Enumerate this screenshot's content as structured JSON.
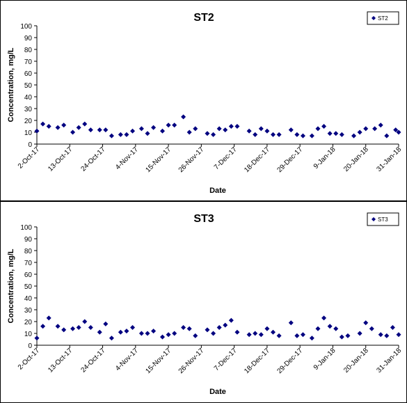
{
  "chart_data": [
    {
      "type": "scatter",
      "title": "ST2",
      "xlabel": "Date",
      "ylabel": "Concentration, mg/L",
      "ylim": [
        0,
        100
      ],
      "yticks": [
        "0",
        "10",
        "20",
        "30",
        "40",
        "50",
        "60",
        "70",
        "80",
        "90",
        "100"
      ],
      "xlim": [
        "2017-10-02",
        "2018-01-31"
      ],
      "xticks": [
        {
          "date": "2017-10-02",
          "label": "2-Oct-17"
        },
        {
          "date": "2017-10-13",
          "label": "13-Oct-17"
        },
        {
          "date": "2017-10-24",
          "label": "24-Oct-17"
        },
        {
          "date": "2017-11-04",
          "label": "4-Nov-17"
        },
        {
          "date": "2017-11-15",
          "label": "15-Nov-17"
        },
        {
          "date": "2017-11-26",
          "label": "26-Nov-17"
        },
        {
          "date": "2017-12-07",
          "label": "7-Dec-17"
        },
        {
          "date": "2017-12-18",
          "label": "18-Dec-17"
        },
        {
          "date": "2017-12-29",
          "label": "29-Dec-17"
        },
        {
          "date": "2018-01-09",
          "label": "9-Jan-18"
        },
        {
          "date": "2018-01-20",
          "label": "20-Jan-18"
        },
        {
          "date": "2018-01-31",
          "label": "31-Jan-18"
        }
      ],
      "grid": false,
      "legend_position": "top-right",
      "series": [
        {
          "name": "ST2",
          "color": "#000080",
          "x": [
            "2017-10-02",
            "2017-10-04",
            "2017-10-06",
            "2017-10-09",
            "2017-10-11",
            "2017-10-14",
            "2017-10-16",
            "2017-10-18",
            "2017-10-20",
            "2017-10-23",
            "2017-10-25",
            "2017-10-27",
            "2017-10-30",
            "2017-11-01",
            "2017-11-03",
            "2017-11-06",
            "2017-11-08",
            "2017-11-10",
            "2017-11-13",
            "2017-11-15",
            "2017-11-17",
            "2017-11-20",
            "2017-11-22",
            "2017-11-24",
            "2017-11-28",
            "2017-11-30",
            "2017-12-02",
            "2017-12-04",
            "2017-12-06",
            "2017-12-08",
            "2017-12-12",
            "2017-12-14",
            "2017-12-16",
            "2017-12-18",
            "2017-12-20",
            "2017-12-22",
            "2017-12-26",
            "2017-12-28",
            "2017-12-30",
            "2018-01-02",
            "2018-01-04",
            "2018-01-06",
            "2018-01-08",
            "2018-01-10",
            "2018-01-12",
            "2018-01-16",
            "2018-01-18",
            "2018-01-20",
            "2018-01-23",
            "2018-01-25",
            "2018-01-27",
            "2018-01-30",
            "2018-01-31"
          ],
          "values": [
            11,
            17,
            15,
            14,
            16,
            10,
            14,
            17,
            12,
            12,
            12,
            7,
            8,
            8,
            11,
            13,
            9,
            14,
            11,
            16,
            16,
            23,
            10,
            13,
            9,
            8,
            13,
            12,
            15,
            15,
            11,
            8,
            13,
            11,
            8,
            8,
            12,
            8,
            7,
            7,
            13,
            15,
            9,
            9,
            8,
            7,
            10,
            13,
            13,
            16,
            7,
            12,
            10
          ]
        }
      ]
    },
    {
      "type": "scatter",
      "title": "ST3",
      "xlabel": "Date",
      "ylabel": "Concentration, mg/L",
      "ylim": [
        0,
        100
      ],
      "yticks": [
        "0",
        "10",
        "20",
        "30",
        "40",
        "50",
        "60",
        "70",
        "80",
        "90",
        "100"
      ],
      "xlim": [
        "2017-10-02",
        "2018-01-31"
      ],
      "xticks": [
        {
          "date": "2017-10-02",
          "label": "2-Oct-17"
        },
        {
          "date": "2017-10-13",
          "label": "13-Oct-17"
        },
        {
          "date": "2017-10-24",
          "label": "24-Oct-17"
        },
        {
          "date": "2017-11-04",
          "label": "4-Nov-17"
        },
        {
          "date": "2017-11-15",
          "label": "15-Nov-17"
        },
        {
          "date": "2017-11-26",
          "label": "26-Nov-17"
        },
        {
          "date": "2017-12-07",
          "label": "7-Dec-17"
        },
        {
          "date": "2017-12-18",
          "label": "18-Dec-17"
        },
        {
          "date": "2017-12-29",
          "label": "29-Dec-17"
        },
        {
          "date": "2018-01-09",
          "label": "9-Jan-18"
        },
        {
          "date": "2018-01-20",
          "label": "20-Jan-18"
        },
        {
          "date": "2018-01-31",
          "label": "31-Jan-18"
        }
      ],
      "grid": false,
      "legend_position": "top-right",
      "series": [
        {
          "name": "ST3",
          "color": "#000080",
          "x": [
            "2017-10-02",
            "2017-10-04",
            "2017-10-06",
            "2017-10-09",
            "2017-10-11",
            "2017-10-14",
            "2017-10-16",
            "2017-10-18",
            "2017-10-20",
            "2017-10-23",
            "2017-10-25",
            "2017-10-27",
            "2017-10-30",
            "2017-11-01",
            "2017-11-03",
            "2017-11-06",
            "2017-11-08",
            "2017-11-10",
            "2017-11-13",
            "2017-11-15",
            "2017-11-17",
            "2017-11-20",
            "2017-11-22",
            "2017-11-24",
            "2017-11-28",
            "2017-11-30",
            "2017-12-02",
            "2017-12-04",
            "2017-12-06",
            "2017-12-08",
            "2017-12-12",
            "2017-12-14",
            "2017-12-16",
            "2017-12-18",
            "2017-12-20",
            "2017-12-22",
            "2017-12-26",
            "2017-12-28",
            "2017-12-30",
            "2018-01-02",
            "2018-01-04",
            "2018-01-06",
            "2018-01-08",
            "2018-01-10",
            "2018-01-12",
            "2018-01-14",
            "2018-01-18",
            "2018-01-20",
            "2018-01-22",
            "2018-01-25",
            "2018-01-27",
            "2018-01-29",
            "2018-01-31"
          ],
          "values": [
            6,
            16,
            23,
            16,
            13,
            14,
            15,
            20,
            15,
            11,
            18,
            6,
            11,
            12,
            15,
            10,
            10,
            12,
            7,
            9,
            10,
            15,
            14,
            8,
            13,
            10,
            15,
            17,
            21,
            11,
            9,
            10,
            9,
            14,
            11,
            8,
            19,
            8,
            9,
            6,
            14,
            23,
            16,
            14,
            7,
            8,
            10,
            19,
            14,
            9,
            8,
            15,
            9
          ]
        }
      ]
    }
  ]
}
